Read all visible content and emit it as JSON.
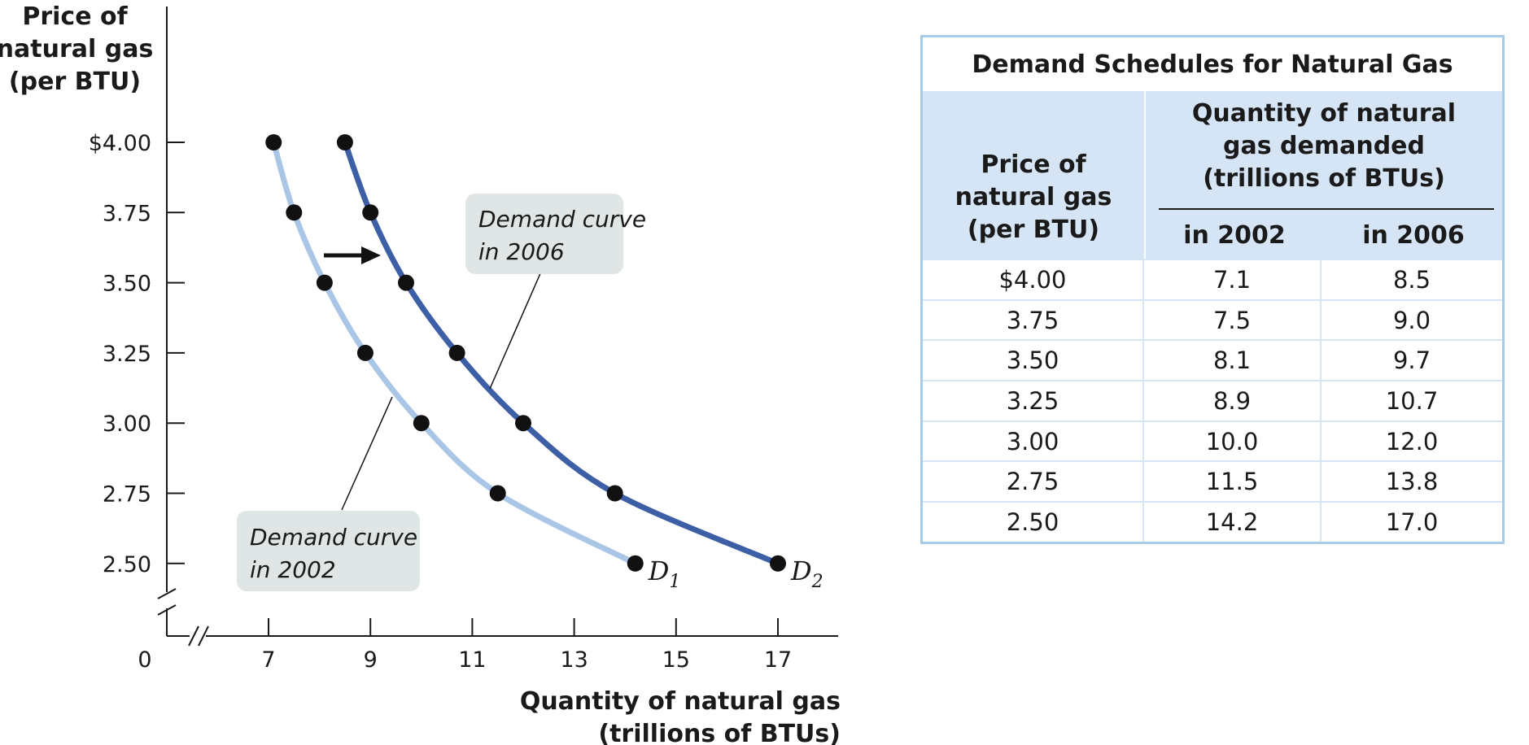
{
  "chart_data": [
    {
      "type": "line",
      "ylabel": [
        "Price of",
        "natural gas",
        "(per BTU)"
      ],
      "xlabel": [
        "Quantity of natural gas",
        "(trillions of BTUs)"
      ],
      "x_ticks": [
        "7",
        "9",
        "11",
        "13",
        "15",
        "17"
      ],
      "x_tick_values": [
        7,
        9,
        11,
        13,
        15,
        17
      ],
      "y_ticks": [
        "$4.00",
        "3.75",
        "3.50",
        "3.25",
        "3.00",
        "2.75",
        "2.50"
      ],
      "y_tick_values": [
        4.0,
        3.75,
        3.5,
        3.25,
        3.0,
        2.75,
        2.5
      ],
      "origin_label": "0",
      "xlim": [
        5,
        18
      ],
      "ylim": [
        2.25,
        4.5
      ],
      "axis_break": true,
      "grid": false,
      "series": [
        {
          "name": "D1",
          "label_letter": "D",
          "label_sub": "1",
          "color": "#a9c6e6",
          "x": [
            7.1,
            7.5,
            8.1,
            8.9,
            10.0,
            11.5,
            14.2
          ],
          "y": [
            4.0,
            3.75,
            3.5,
            3.25,
            3.0,
            2.75,
            2.5
          ]
        },
        {
          "name": "D2",
          "label_letter": "D",
          "label_sub": "2",
          "color": "#3d5fa6",
          "x": [
            8.5,
            9.0,
            9.7,
            10.7,
            12.0,
            13.8,
            17.0
          ],
          "y": [
            4.0,
            3.75,
            3.5,
            3.25,
            3.0,
            2.75,
            2.5
          ]
        }
      ],
      "annotations": [
        {
          "id": "d2006",
          "lines": [
            "Demand curve",
            "in 2006"
          ],
          "target_series": "D2"
        },
        {
          "id": "d2002",
          "lines": [
            "Demand curve",
            "in 2002"
          ],
          "target_series": "D1"
        }
      ],
      "shift_arrow": {
        "direction": "right"
      }
    },
    {
      "type": "table",
      "title": "Demand Schedules for Natural Gas",
      "header_price": "Price of\nnatural gas\n(per BTU)",
      "header_quantity": "Quantity of natural\ngas demanded\n(trillions of BTUs)",
      "header_years": [
        "in 2002",
        "in 2006"
      ],
      "rows": [
        [
          "$4.00",
          "7.1",
          "8.5"
        ],
        [
          "3.75",
          "7.5",
          "9.0"
        ],
        [
          "3.50",
          "8.1",
          "9.7"
        ],
        [
          "3.25",
          "8.9",
          "10.7"
        ],
        [
          "3.00",
          "10.0",
          "12.0"
        ],
        [
          "2.75",
          "11.5",
          "13.8"
        ],
        [
          "2.50",
          "14.2",
          "17.0"
        ]
      ]
    }
  ],
  "colors": {
    "box_fill": "#dfe6e5",
    "table_border": "#a9cbe6",
    "table_header": "#d5e5f5",
    "axis": "#1a1a1a"
  }
}
